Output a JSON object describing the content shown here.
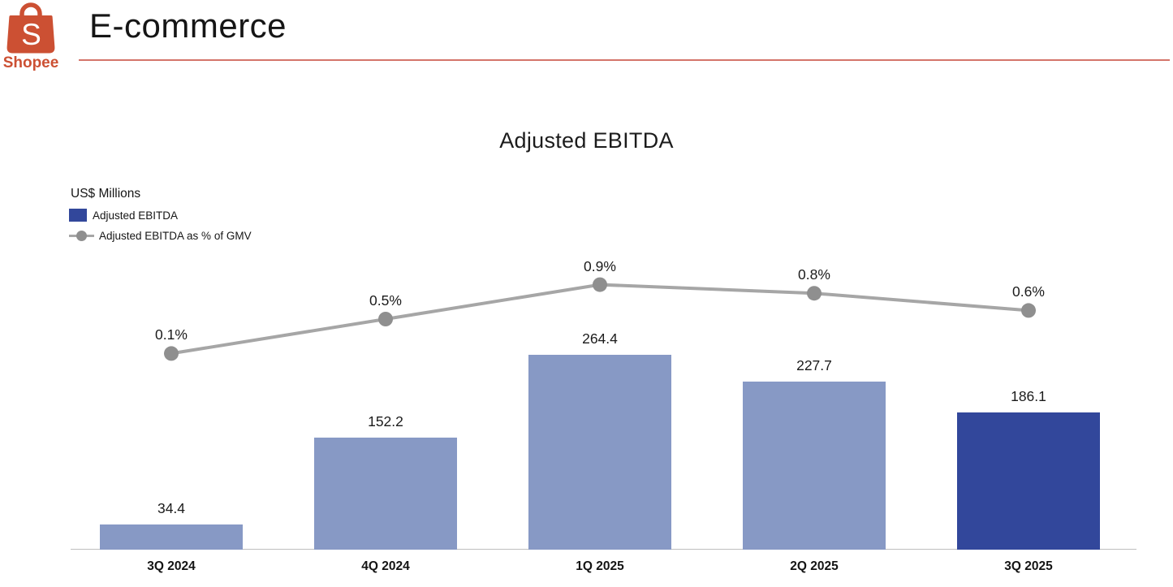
{
  "header": {
    "logo": {
      "brand": "Shopee",
      "letter": "S"
    },
    "title": "E-commerce"
  },
  "chart": {
    "title": "Adjusted EBITDA",
    "units_label": "US$ Millions",
    "legend": [
      {
        "label": "Adjusted EBITDA",
        "swatch": "bar-swatch"
      },
      {
        "label": "Adjusted EBITDA as % of GMV",
        "swatch": "line-marker-swatch"
      }
    ]
  },
  "chart_data": {
    "type": "bar",
    "title": "Adjusted EBITDA",
    "xlabel": "",
    "ylabel": "US$ Millions",
    "categories": [
      "3Q 2024",
      "4Q 2024",
      "1Q 2025",
      "2Q 2025",
      "3Q 2025"
    ],
    "series": [
      {
        "name": "Adjusted EBITDA",
        "type": "bar",
        "unit": "US$ Millions",
        "values": [
          34.4,
          152.2,
          264.4,
          227.7,
          186.1
        ],
        "labels": [
          "34.4",
          "152.2",
          "264.4",
          "227.7",
          "186.1"
        ],
        "bar_colors": [
          "#8799C5",
          "#8799C5",
          "#8799C5",
          "#8799C5",
          "#32479B"
        ]
      },
      {
        "name": "Adjusted EBITDA as % of GMV",
        "type": "line",
        "unit": "% of GMV",
        "values": [
          0.1,
          0.5,
          0.9,
          0.8,
          0.6
        ],
        "labels": [
          "0.1%",
          "0.5%",
          "0.9%",
          "0.8%",
          "0.6%"
        ]
      }
    ],
    "ylim": [
      0,
      290
    ],
    "y2lim": [
      0,
      1.0
    ],
    "grid": false,
    "legend_position": "top-left"
  },
  "colors": {
    "bar_light": "#8799C5",
    "bar_dark": "#32479B",
    "trend_line": "#A6A6A6",
    "trend_marker": "#8F8F8F",
    "brand_orange": "#CC5033",
    "divider": "#D4756A",
    "axis": "#BFBFBF"
  }
}
